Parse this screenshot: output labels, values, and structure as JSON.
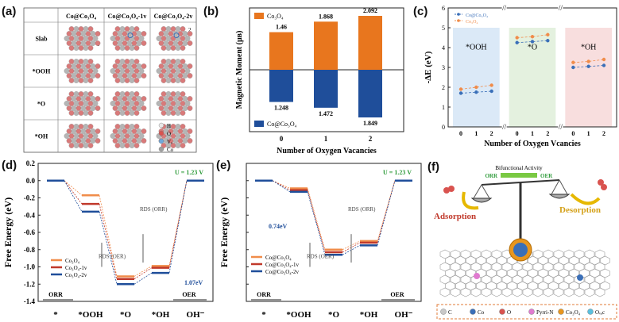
{
  "panel_labels": {
    "a": "(a)",
    "b": "(b)",
    "c": "(c)",
    "d": "(d)",
    "e": "(e)",
    "f": "(f)"
  },
  "panel_a": {
    "col_headers": [
      "Co@Co₃O₄",
      "Co@Co₃O₄-1v",
      "Co@Co₃O₄-2v"
    ],
    "row_labels": [
      "Slab",
      "*OOH",
      "*O",
      "*OH"
    ],
    "legend": [
      "H",
      "O",
      "Vₒ",
      "Co"
    ],
    "legend_colors": [
      "#e8e8e8",
      "#d9534f",
      "#6fa8dc",
      "#a0a0a0"
    ],
    "vacancy_marks": [
      "1",
      "1",
      "2"
    ]
  },
  "panel_b": {
    "chart_data": {
      "type": "bar",
      "categories": [
        "0",
        "1",
        "2"
      ],
      "series": [
        {
          "name": "Co₃O₄",
          "values": [
            1.46,
            1.868,
            2.092
          ],
          "color": "#e8761e"
        },
        {
          "name": "Co@Co₃O₄",
          "values": [
            -1.248,
            -1.472,
            -1.849
          ],
          "color": "#1f4e9a"
        }
      ],
      "value_labels_top": [
        "1.46",
        "1.868",
        "2.092"
      ],
      "value_labels_bottom": [
        "1.248",
        "1.472",
        "1.849"
      ],
      "xlabel": "Number of Oxygen Vacancies",
      "ylabel": "Magnetic Moment (μʙ)",
      "ylim": [
        -2.4,
        2.4
      ]
    }
  },
  "panel_c": {
    "chart_data": {
      "type": "scatter",
      "xlabel": "Number of Oxygen Vcancies",
      "ylabel": "-ΔE (eV)",
      "ylim": [
        0,
        6
      ],
      "yticks": [
        "0",
        "1",
        "2",
        "3",
        "4",
        "5",
        "6"
      ],
      "groups": [
        {
          "name": "*OOH",
          "x": [
            0,
            1,
            2
          ],
          "co3o4": [
            1.9,
            2.0,
            2.1
          ],
          "coco3o4": [
            1.7,
            1.75,
            1.8
          ],
          "bg": "#dbe9f7"
        },
        {
          "name": "*O",
          "x": [
            0,
            1,
            2
          ],
          "co3o4": [
            4.5,
            4.55,
            4.65
          ],
          "coco3o4": [
            4.25,
            4.3,
            4.35
          ],
          "bg": "#e4f1df"
        },
        {
          "name": "*OH",
          "x": [
            0,
            1,
            2
          ],
          "co3o4": [
            3.25,
            3.3,
            3.4
          ],
          "coco3o4": [
            3.0,
            3.05,
            3.1
          ],
          "bg": "#f8dede"
        }
      ],
      "legend": [
        "Co@Co₃O₄",
        "Co₃O₄"
      ],
      "colors": {
        "co3o4": "#f08c4a",
        "coco3o4": "#3a6fb8"
      }
    }
  },
  "panel_d": {
    "chart_data": {
      "type": "line",
      "categories": [
        "*",
        "*OOH",
        "*O",
        "*OH",
        "OH⁻"
      ],
      "ylabel": "Free Energy (eV)",
      "ylim": [
        -1.4,
        0.2
      ],
      "yticks": [
        "0.2",
        "0.0",
        "-0.2",
        "-0.4",
        "-0.6",
        "-0.8",
        "-1.0",
        "-1.2",
        "-1.4"
      ],
      "series": [
        {
          "name": "Co₃O₄",
          "values": [
            0,
            -0.17,
            -1.11,
            -0.99,
            0
          ],
          "color": "#f08c4a"
        },
        {
          "name": "Co₃O₄-1v",
          "values": [
            0,
            -0.27,
            -1.14,
            -1.01,
            0
          ],
          "color": "#c0392b"
        },
        {
          "name": "Co₃O₄-2v",
          "values": [
            0,
            -0.36,
            -1.2,
            -1.07,
            0
          ],
          "color": "#1f4e9a"
        }
      ],
      "annotations": {
        "u": "U = 1.23 V",
        "rds_orr": "RDS (ORR)",
        "rds_oer": "RDS (OER)",
        "gap": "1.07eV",
        "orr": "ORR",
        "oer": "OER"
      }
    }
  },
  "panel_e": {
    "chart_data": {
      "type": "line",
      "categories": [
        "*",
        "*OOH",
        "*O",
        "*OH",
        "OH⁻"
      ],
      "ylabel": "Free Energy (eV)",
      "ylim": [
        -1.4,
        0.2
      ],
      "yticks": [
        "0.2",
        "0.0",
        "-0.2",
        "-0.4",
        "-0.6",
        "-0.8",
        "-1.0",
        "-1.2",
        "-1.4"
      ],
      "series": [
        {
          "name": "Co@Co₃O₄",
          "values": [
            0,
            -0.09,
            -0.8,
            -0.7,
            0
          ],
          "color": "#f08c4a"
        },
        {
          "name": "Co@Co₃O₄-1v",
          "values": [
            0,
            -0.11,
            -0.83,
            -0.72,
            0
          ],
          "color": "#c0392b"
        },
        {
          "name": "Co@Co₃O₄-2v",
          "values": [
            0,
            -0.13,
            -0.86,
            -0.75,
            0
          ],
          "color": "#1f4e9a"
        }
      ],
      "annotations": {
        "u": "U = 1.23 V",
        "rds_orr": "RDS (ORR)",
        "rds_oer": "RDS (OER)",
        "gap": "0.74eV",
        "orr": "ORR",
        "oer": "OER"
      }
    }
  },
  "panel_f": {
    "bifunctional": "Bifunctional Activity",
    "orr": "ORR",
    "oer": "OER",
    "adsorption": "Adsorption",
    "desorption": "Desorption",
    "legend": [
      "C",
      "Co",
      "O",
      "Pyrri-N",
      "Co₃O₄",
      "Oᵥₐc"
    ],
    "legend_colors": [
      "#c8c8c8",
      "#3a6fb8",
      "#d9534f",
      "#e07bd0",
      "#e8961e",
      "#5bc0de"
    ]
  }
}
